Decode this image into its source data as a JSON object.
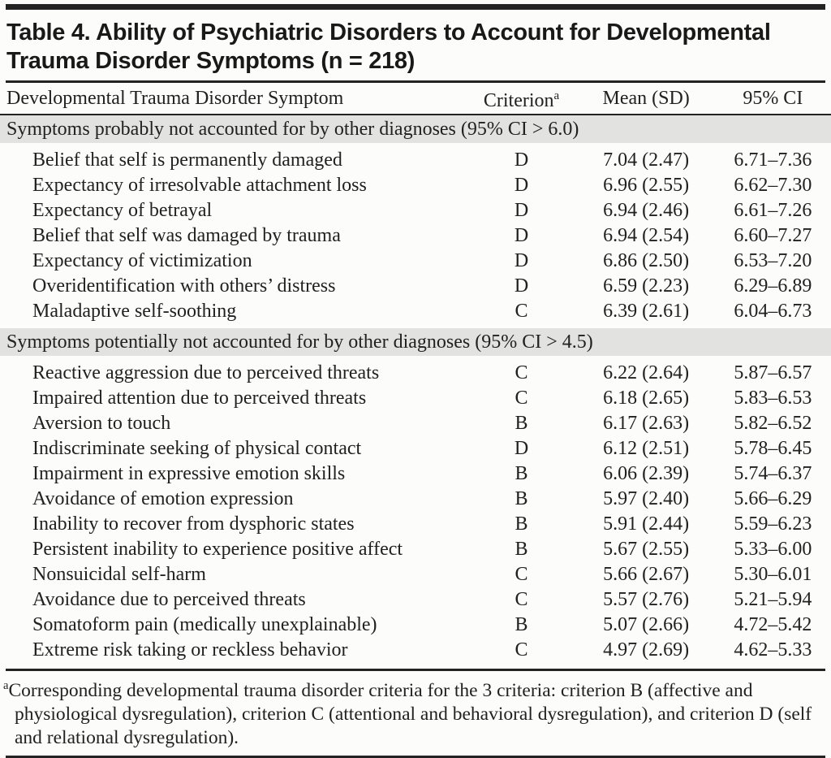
{
  "document": {
    "title_lines": [
      "Table 4. Ability of Psychiatric Disorders to Account for Developmental",
      "Trauma Disorder Symptoms (n = 218)"
    ],
    "columns": {
      "symptom": "Developmental Trauma Disorder Symptom",
      "criterion": "Criterion",
      "criterion_footnote_marker": "a",
      "mean_sd": "Mean (SD)",
      "ci": "95% CI"
    },
    "sections": [
      {
        "header": "Symptoms probably not accounted for by other diagnoses (95% CI > 6.0)",
        "rows": [
          {
            "symptom": "Belief that self is permanently damaged",
            "criterion": "D",
            "mean_sd": "7.04 (2.47)",
            "ci": "6.71–7.36"
          },
          {
            "symptom": "Expectancy of irresolvable attachment loss",
            "criterion": "D",
            "mean_sd": "6.96 (2.55)",
            "ci": "6.62–7.30"
          },
          {
            "symptom": "Expectancy of betrayal",
            "criterion": "D",
            "mean_sd": "6.94 (2.46)",
            "ci": "6.61–7.26"
          },
          {
            "symptom": "Belief that self was damaged by trauma",
            "criterion": "D",
            "mean_sd": "6.94 (2.54)",
            "ci": "6.60–7.27"
          },
          {
            "symptom": "Expectancy of victimization",
            "criterion": "D",
            "mean_sd": "6.86 (2.50)",
            "ci": "6.53–7.20"
          },
          {
            "symptom": "Overidentification with others’ distress",
            "criterion": "D",
            "mean_sd": "6.59 (2.23)",
            "ci": "6.29–6.89"
          },
          {
            "symptom": "Maladaptive self-soothing",
            "criterion": "C",
            "mean_sd": "6.39 (2.61)",
            "ci": "6.04–6.73"
          }
        ]
      },
      {
        "header": "Symptoms potentially not accounted for by other diagnoses (95% CI > 4.5)",
        "rows": [
          {
            "symptom": "Reactive aggression due to perceived threats",
            "criterion": "C",
            "mean_sd": "6.22 (2.64)",
            "ci": "5.87–6.57"
          },
          {
            "symptom": "Impaired attention due to perceived threats",
            "criterion": "C",
            "mean_sd": "6.18 (2.65)",
            "ci": "5.83–6.53"
          },
          {
            "symptom": "Aversion to touch",
            "criterion": "B",
            "mean_sd": "6.17 (2.63)",
            "ci": "5.82–6.52"
          },
          {
            "symptom": "Indiscriminate seeking of physical contact",
            "criterion": "D",
            "mean_sd": "6.12 (2.51)",
            "ci": "5.78–6.45"
          },
          {
            "symptom": "Impairment in expressive emotion skills",
            "criterion": "B",
            "mean_sd": "6.06 (2.39)",
            "ci": "5.74–6.37"
          },
          {
            "symptom": "Avoidance of emotion expression",
            "criterion": "B",
            "mean_sd": "5.97 (2.40)",
            "ci": "5.66–6.29"
          },
          {
            "symptom": "Inability to recover from dysphoric states",
            "criterion": "B",
            "mean_sd": "5.91 (2.44)",
            "ci": "5.59–6.23"
          },
          {
            "symptom": "Persistent inability to experience positive affect",
            "criterion": "B",
            "mean_sd": "5.67 (2.55)",
            "ci": "5.33–6.00"
          },
          {
            "symptom": "Nonsuicidal self-harm",
            "criterion": "C",
            "mean_sd": "5.66 (2.67)",
            "ci": "5.30–6.01"
          },
          {
            "symptom": "Avoidance due to perceived threats",
            "criterion": "C",
            "mean_sd": "5.57 (2.76)",
            "ci": "5.21–5.94"
          },
          {
            "symptom": "Somatoform pain (medically unexplainable)",
            "criterion": "B",
            "mean_sd": "5.07 (2.66)",
            "ci": "4.72–5.42"
          },
          {
            "symptom": "Extreme risk taking or reckless behavior",
            "criterion": "C",
            "mean_sd": "4.97 (2.69)",
            "ci": "4.62–5.33"
          }
        ]
      }
    ],
    "footnote": {
      "marker": "a",
      "text": "Corresponding developmental trauma disorder criteria for the 3 criteria: criterion B (affective and physiological dysregulation), criterion C (attentional and behavioral dysregulation), and criterion D (self and relational dysregulation)."
    },
    "colors": {
      "background": "#fcfcfa",
      "text": "#21211f",
      "rule": "#232323",
      "section_band": "#e2e2e0"
    }
  }
}
